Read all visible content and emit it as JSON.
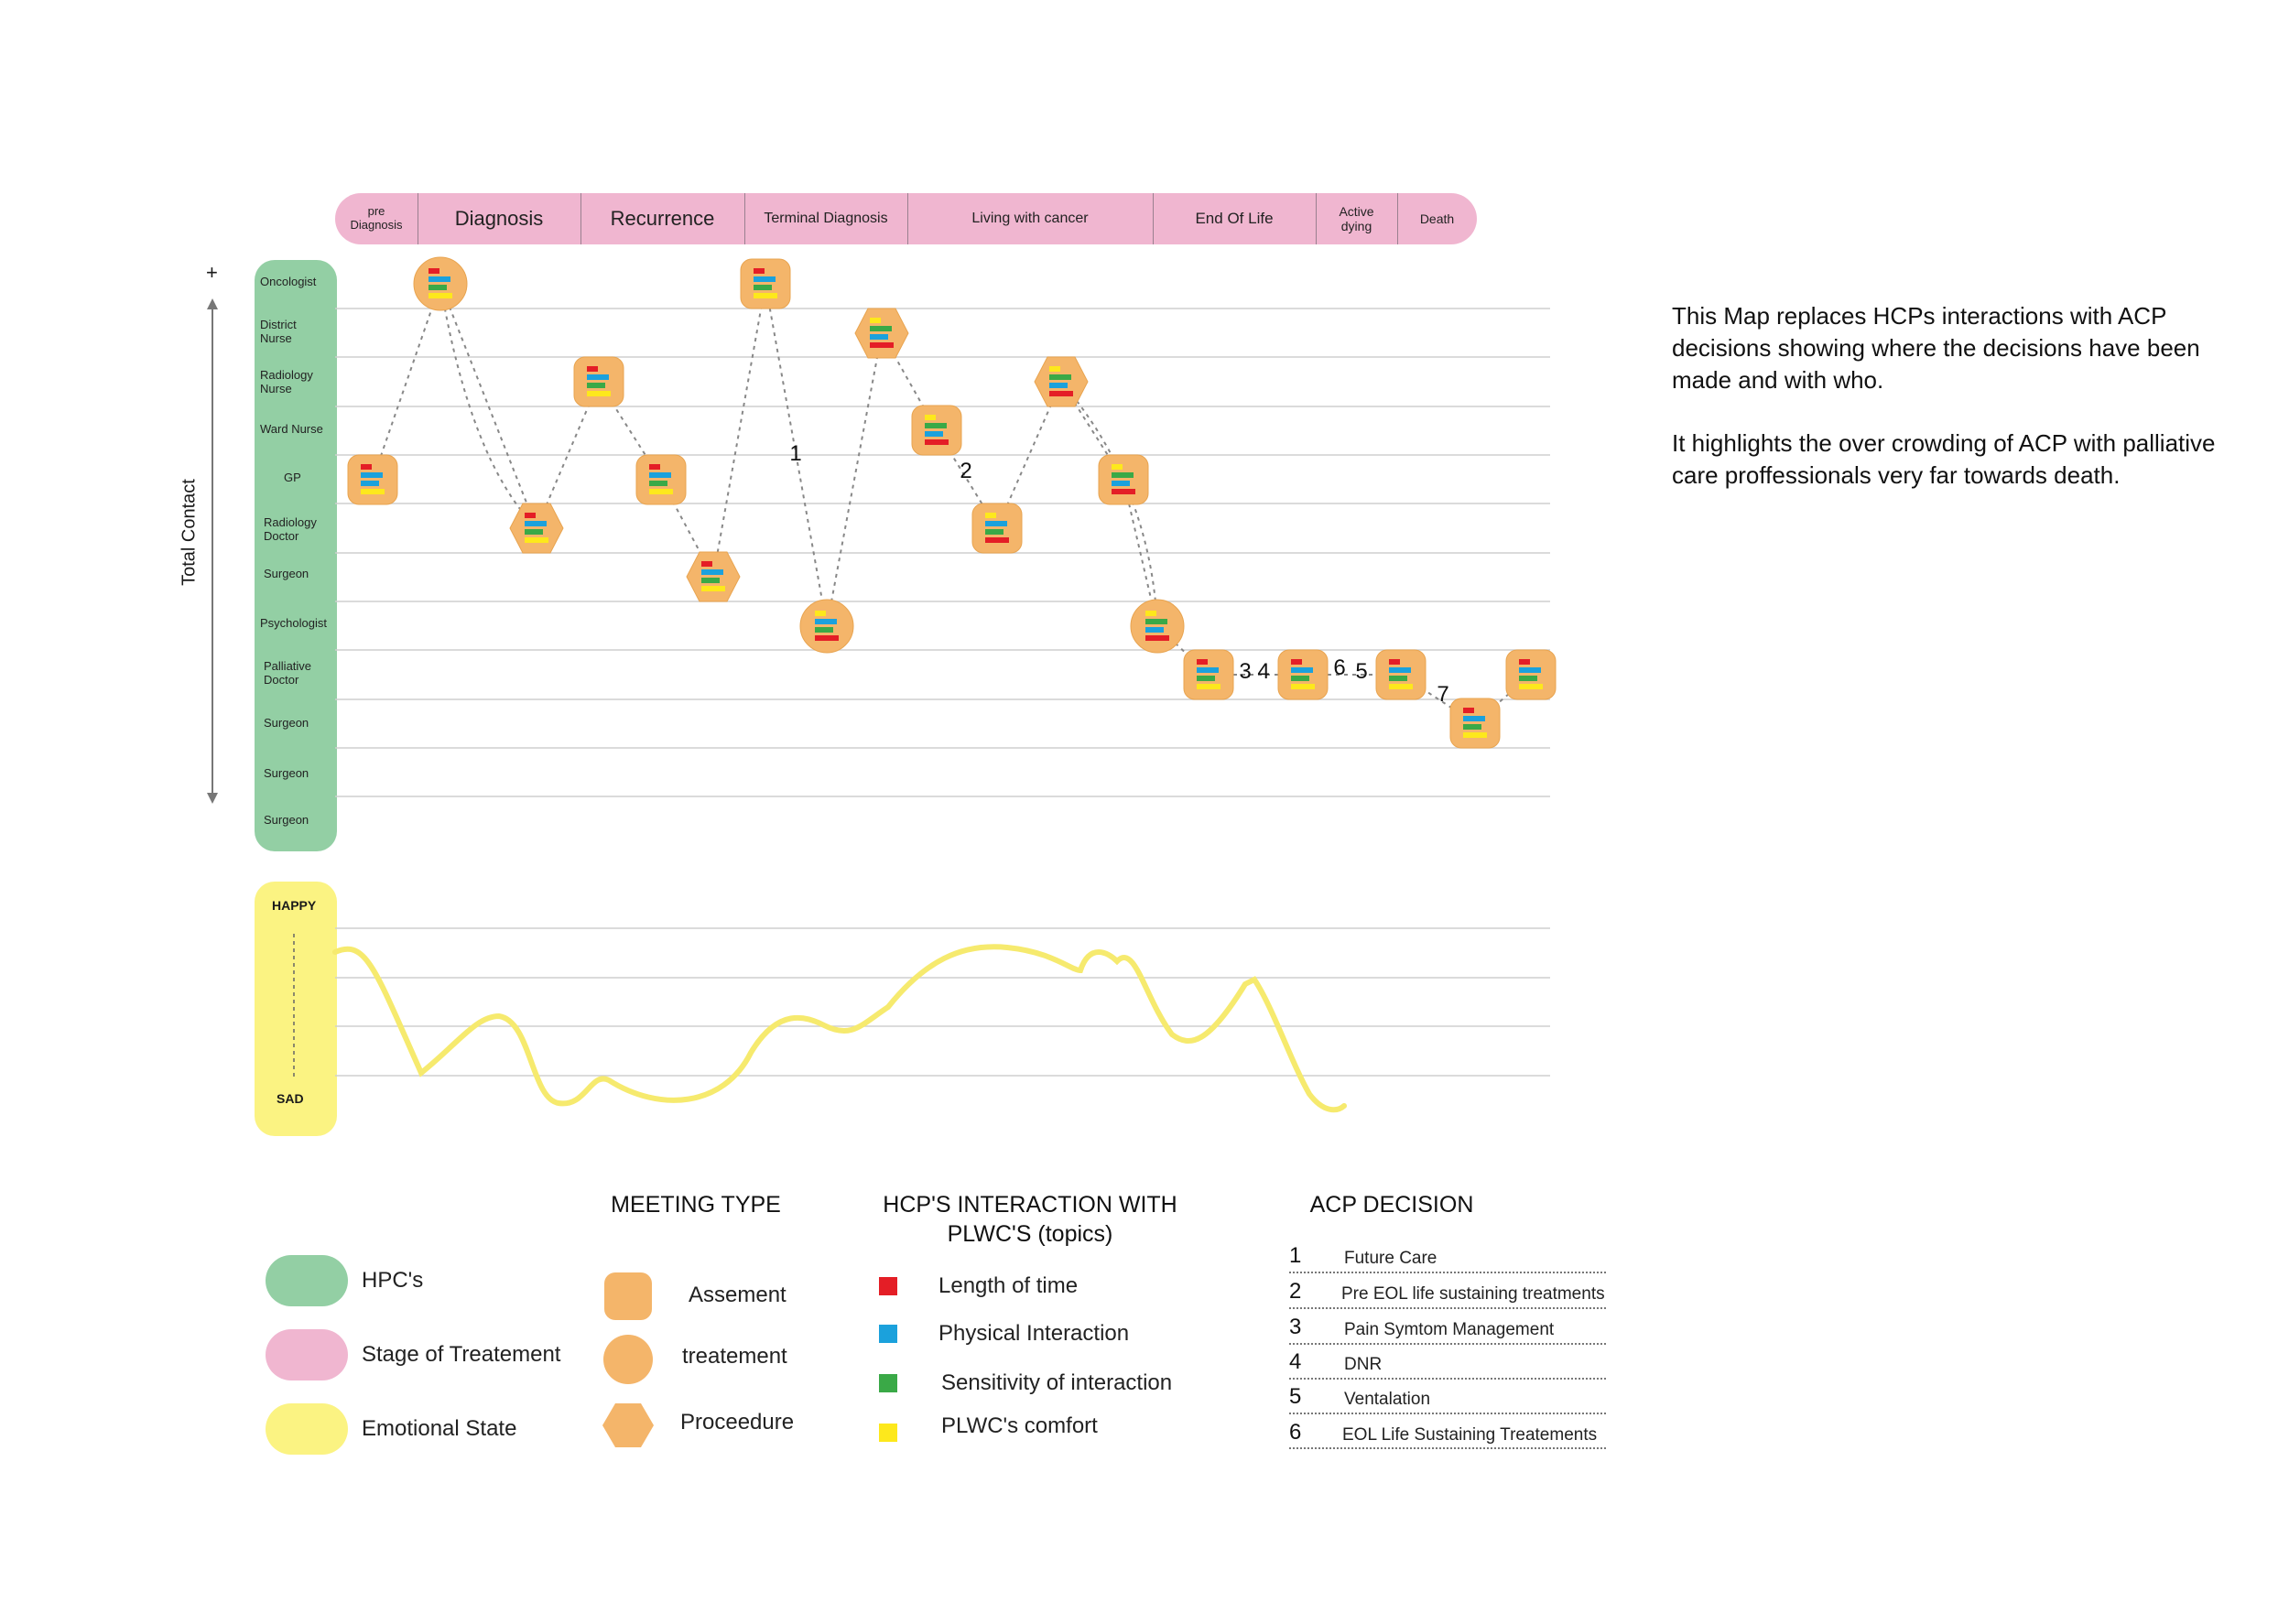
{
  "stages": [
    "pre Diagnosis",
    "Diagnosis",
    "Recurrence",
    "Terminal Diagnosis",
    "Living with cancer",
    "End Of Life",
    "Active dying",
    "Death"
  ],
  "hcps": [
    "Oncologist",
    "District Nurse",
    "Radiology Nurse",
    "Ward Nurse",
    "GP",
    "Radiology Doctor",
    "Surgeon",
    "Psychologist",
    "Palliative Doctor",
    "Surgeon",
    "Surgeon",
    "Surgeon"
  ],
  "axis": {
    "plus": "+",
    "label": "Total Contact"
  },
  "emotion": {
    "happy": "HAPPY",
    "sad": "SAD"
  },
  "decision_markers": [
    {
      "num": "1",
      "after_meeting": 7
    },
    {
      "num": "2",
      "after_meeting": 11
    },
    {
      "num": "3",
      "after_meeting": 15
    },
    {
      "num": "4",
      "after_meeting": 15
    },
    {
      "num": "6",
      "after_meeting": 16
    },
    {
      "num": "5",
      "after_meeting": 16
    },
    {
      "num": "7",
      "after_meeting": 17
    }
  ],
  "meetings": [
    {
      "shape": "assessment",
      "row": 4,
      "bars": [
        "red",
        "blue",
        "blue",
        "yellow"
      ]
    },
    {
      "shape": "treatment",
      "row": 0,
      "bars": [
        "red",
        "blue",
        "green",
        "yellow"
      ]
    },
    {
      "shape": "procedure",
      "row": 5,
      "bars": [
        "red",
        "blue",
        "green",
        "yellow"
      ]
    },
    {
      "shape": "assessment",
      "row": 2,
      "bars": [
        "red",
        "blue",
        "green",
        "yellow"
      ]
    },
    {
      "shape": "assessment",
      "row": 4,
      "bars": [
        "red",
        "blue",
        "green",
        "yellow"
      ]
    },
    {
      "shape": "procedure",
      "row": 6,
      "bars": [
        "red",
        "blue",
        "green",
        "yellow"
      ]
    },
    {
      "shape": "assessment",
      "row": 0,
      "bars": [
        "red",
        "blue",
        "green",
        "yellow"
      ]
    },
    {
      "shape": "treatment",
      "row": 7,
      "bars": [
        "yellow",
        "blue",
        "green",
        "red"
      ]
    },
    {
      "shape": "procedure",
      "row": 1,
      "bars": [
        "yellow",
        "green",
        "blue",
        "red"
      ]
    },
    {
      "shape": "assessment",
      "row": 3,
      "bars": [
        "yellow",
        "green",
        "blue",
        "red"
      ]
    },
    {
      "shape": "assessment",
      "row": 5,
      "bars": [
        "yellow",
        "blue",
        "green",
        "red"
      ]
    },
    {
      "shape": "procedure",
      "row": 2,
      "bars": [
        "yellow",
        "green",
        "blue",
        "red"
      ]
    },
    {
      "shape": "assessment",
      "row": 4,
      "bars": [
        "yellow",
        "green",
        "blue",
        "red"
      ]
    },
    {
      "shape": "treatment",
      "row": 7,
      "bars": [
        "yellow",
        "green",
        "blue",
        "red"
      ]
    },
    {
      "shape": "assessment",
      "row": 8,
      "bars": [
        "red",
        "blue",
        "green",
        "yellow"
      ]
    },
    {
      "shape": "assessment",
      "row": 8,
      "bars": [
        "red",
        "blue",
        "green",
        "yellow"
      ]
    },
    {
      "shape": "assessment",
      "row": 8,
      "bars": [
        "red",
        "blue",
        "green",
        "yellow"
      ]
    },
    {
      "shape": "assessment",
      "row": 9,
      "bars": [
        "red",
        "blue",
        "green",
        "yellow"
      ]
    },
    {
      "shape": "assessment",
      "row": 8,
      "bars": [
        "red",
        "blue",
        "green",
        "yellow"
      ]
    }
  ],
  "topic_colors": {
    "red": "#e41e26",
    "blue": "#1ba1dc",
    "green": "#3aa947",
    "yellow": "#fde81c"
  },
  "colors": {
    "meeting": "#f4b56a",
    "hcp": "#93cfa4",
    "stage": "#f0b6d0",
    "emotion": "#fbf382",
    "emotion_line": "#f6ea6e"
  },
  "description": [
    "This Map replaces HCPs interactions with ACP decisions showing where the decisions have been made and with who.",
    "It highlights the over crowding of ACP with palliative care proffessionals very far towards death."
  ],
  "legend": {
    "colors": {
      "items": [
        {
          "label": "HPC's",
          "color": "#93cfa4"
        },
        {
          "label": "Stage of Treatement",
          "color": "#f0b6d0"
        },
        {
          "label": "Emotional State",
          "color": "#fbf382"
        }
      ]
    },
    "meeting_type": {
      "title": "MEETING TYPE",
      "items": [
        {
          "label": "Assement",
          "shape": "rounded-square"
        },
        {
          "label": "treatement",
          "shape": "circle"
        },
        {
          "label": "Proceedure",
          "shape": "hexagon"
        }
      ]
    },
    "interaction": {
      "title": "HCP'S INTERACTION WITH\nPLWC'S (topics)",
      "items": [
        {
          "label": "Length of time",
          "color": "#e41e26"
        },
        {
          "label": "Physical Interaction",
          "color": "#1ba1dc"
        },
        {
          "label": "Sensitivity of interaction",
          "color": "#3aa947"
        },
        {
          "label": "PLWC's comfort",
          "color": "#fde81c"
        }
      ]
    },
    "acp": {
      "title": "ACP DECISION",
      "items": [
        {
          "num": "1",
          "label": "Future Care"
        },
        {
          "num": "2",
          "label": "Pre EOL life sustaining treatments"
        },
        {
          "num": "3",
          "label": "Pain Symtom Management"
        },
        {
          "num": "4",
          "label": "DNR"
        },
        {
          "num": "5",
          "label": "Ventalation"
        },
        {
          "num": "6",
          "label": "EOL Life Sustaining Treatements"
        }
      ]
    }
  }
}
